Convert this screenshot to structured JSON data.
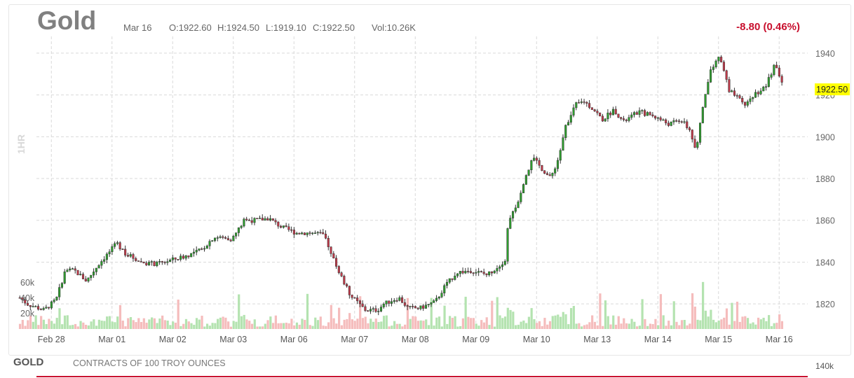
{
  "header": {
    "title": "Gold",
    "date": "Mar 16",
    "open": "O:1922.60",
    "high": "H:1924.50",
    "low": "L:1919.10",
    "close": "C:1922.50",
    "volume": "Vol:10.26K",
    "change": "-8.80 (0.46%)",
    "interval": "1HR"
  },
  "footer": {
    "symbol": "GOLD",
    "description": "CONTRACTS OF 100 TROY OUNCES",
    "volume_tick": "140k"
  },
  "colors": {
    "up": "#2e9d2e",
    "down": "#c13a4a",
    "volume_up": "#b4e3b0",
    "volume_down": "#f5bcbc",
    "grid": "#d9d9d9",
    "last_price_bg": "#ffff00",
    "change_text": "#c8102e"
  },
  "chart_data": {
    "type": "candlestick",
    "last_price": 1922.5,
    "last_price_label": "1922.50",
    "y_axis": {
      "ticks": [
        1820,
        1840,
        1860,
        1880,
        1900,
        1920,
        1940
      ],
      "labels": [
        "1820",
        "1840",
        "1860",
        "1880",
        "1900",
        "1920",
        "1940"
      ],
      "ylim": [
        1808,
        1948
      ]
    },
    "volume_axis": {
      "ticks": [
        20000,
        40000,
        60000
      ],
      "labels": [
        "20k",
        "40k",
        "60k"
      ]
    },
    "x_axis": {
      "labels": [
        "Feb 28",
        "Mar 01",
        "Mar 02",
        "Mar 03",
        "Mar 06",
        "Mar 07",
        "Mar 08",
        "Mar 09",
        "Mar 10",
        "Mar 13",
        "Mar 14",
        "Mar 15",
        "Mar 16"
      ]
    },
    "grid": true,
    "price_path": [
      [
        0,
        1823
      ],
      [
        0.12,
        1820
      ],
      [
        0.4,
        1817
      ],
      [
        0.6,
        1822
      ],
      [
        0.75,
        1836
      ],
      [
        0.9,
        1836
      ],
      [
        1.1,
        1831
      ],
      [
        1.3,
        1839
      ],
      [
        1.45,
        1844
      ],
      [
        1.6,
        1849
      ],
      [
        1.75,
        1844
      ],
      [
        2.0,
        1840
      ],
      [
        2.25,
        1839
      ],
      [
        2.5,
        1841
      ],
      [
        2.75,
        1843
      ],
      [
        3.0,
        1846
      ],
      [
        3.2,
        1852
      ],
      [
        3.5,
        1851
      ],
      [
        3.7,
        1860
      ],
      [
        3.9,
        1860
      ],
      [
        4.1,
        1861
      ],
      [
        4.3,
        1857
      ],
      [
        4.55,
        1854
      ],
      [
        4.8,
        1854
      ],
      [
        5.0,
        1853
      ],
      [
        5.1,
        1847
      ],
      [
        5.3,
        1833
      ],
      [
        5.45,
        1824
      ],
      [
        5.7,
        1817
      ],
      [
        5.9,
        1817
      ],
      [
        6.0,
        1820
      ],
      [
        6.25,
        1823
      ],
      [
        6.4,
        1818
      ],
      [
        6.6,
        1818
      ],
      [
        6.85,
        1821
      ],
      [
        7.0,
        1828
      ],
      [
        7.2,
        1835
      ],
      [
        7.45,
        1836
      ],
      [
        7.7,
        1834
      ],
      [
        7.85,
        1837
      ],
      [
        8.0,
        1841
      ],
      [
        8.05,
        1858
      ],
      [
        8.2,
        1868
      ],
      [
        8.3,
        1876
      ],
      [
        8.45,
        1890
      ],
      [
        8.6,
        1885
      ],
      [
        8.75,
        1880
      ],
      [
        8.9,
        1891
      ],
      [
        9.0,
        1905
      ],
      [
        9.15,
        1915
      ],
      [
        9.3,
        1917
      ],
      [
        9.5,
        1912
      ],
      [
        9.6,
        1908
      ],
      [
        9.8,
        1913
      ],
      [
        9.95,
        1907
      ],
      [
        10.2,
        1912
      ],
      [
        10.45,
        1910
      ],
      [
        10.7,
        1906
      ],
      [
        10.9,
        1908
      ],
      [
        11.05,
        1903
      ],
      [
        11.15,
        1893
      ],
      [
        11.25,
        1913
      ],
      [
        11.4,
        1933
      ],
      [
        11.55,
        1938
      ],
      [
        11.7,
        1922
      ],
      [
        11.85,
        1918
      ],
      [
        11.95,
        1915
      ],
      [
        12.1,
        1920
      ],
      [
        12.3,
        1924
      ],
      [
        12.45,
        1935
      ],
      [
        12.6,
        1922.5
      ]
    ]
  }
}
